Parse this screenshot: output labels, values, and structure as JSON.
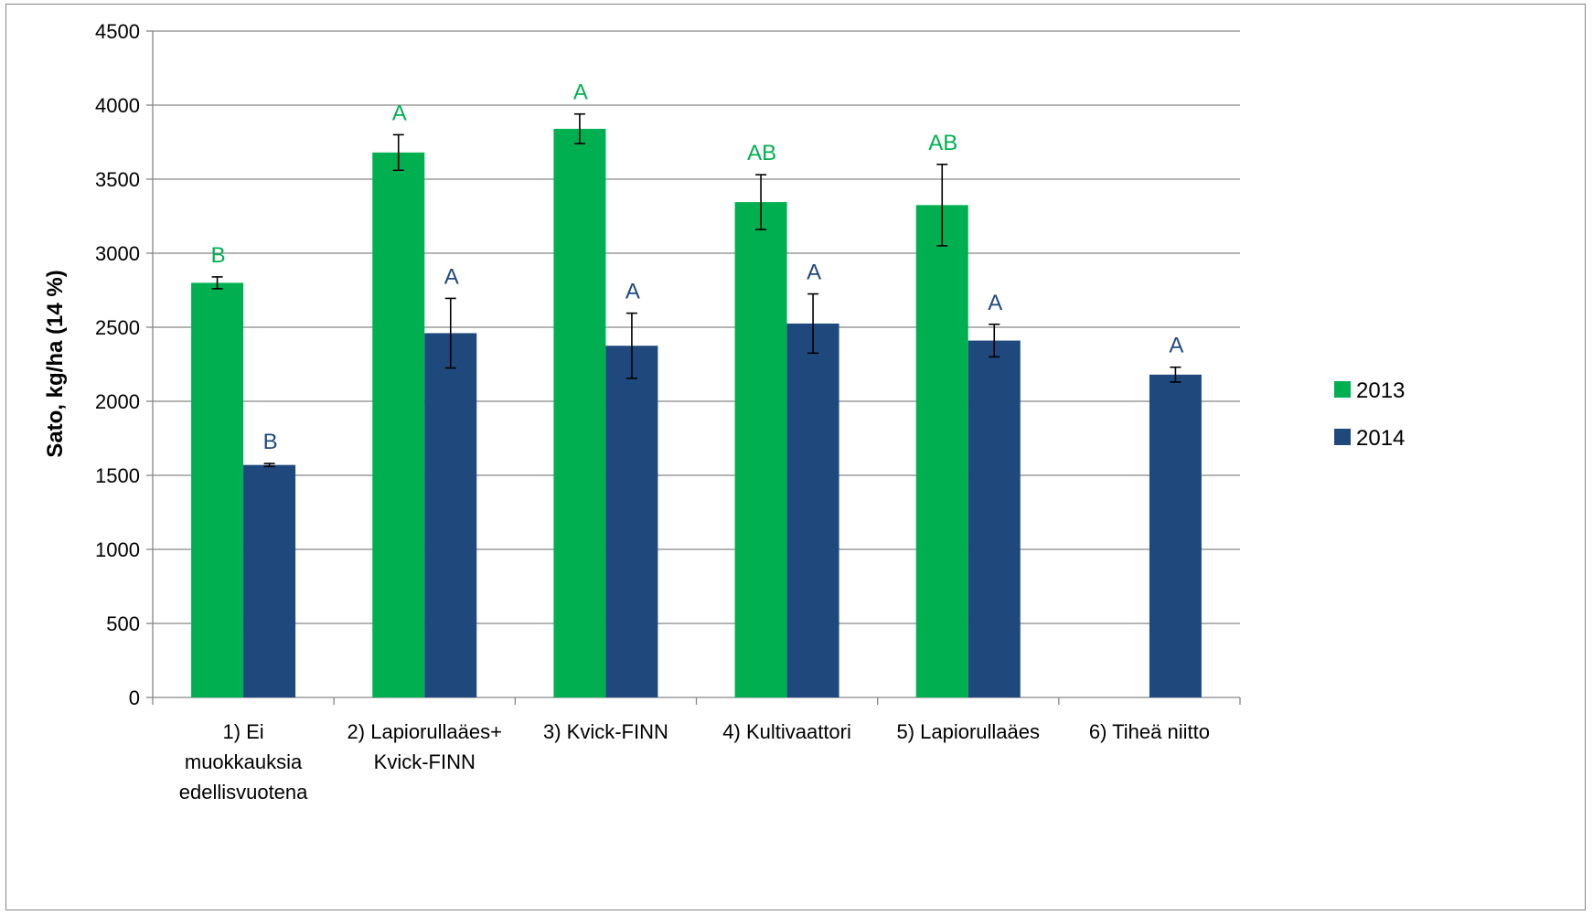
{
  "chart_data": {
    "type": "bar",
    "ylabel": "Sato, kg/ha (14 %)",
    "xlabel": "",
    "ylim": [
      0,
      4500
    ],
    "yticks": [
      0,
      500,
      1000,
      1500,
      2000,
      2500,
      3000,
      3500,
      4000,
      4500
    ],
    "grid": true,
    "legend_position": "right",
    "categories": [
      [
        "1) Ei",
        "muokkauksia",
        "edellisvuotena"
      ],
      [
        "2) Lapiorullaäes+",
        "Kvick-FINN"
      ],
      [
        "3) Kvick-FINN"
      ],
      [
        "4) Kultivaattori"
      ],
      [
        "5) Lapiorullaäes"
      ],
      [
        "6) Tiheä niitto"
      ]
    ],
    "series": [
      {
        "name": "2013",
        "color": "#00b050",
        "values": [
          2800,
          3680,
          3840,
          3345,
          3325,
          null
        ],
        "errors": [
          40,
          120,
          100,
          185,
          275,
          null
        ],
        "letters": [
          "B",
          "A",
          "A",
          "AB",
          "AB",
          null
        ]
      },
      {
        "name": "2014",
        "color": "#1f497d",
        "values": [
          1570,
          2460,
          2375,
          2525,
          2410,
          2180
        ],
        "errors": [
          10,
          235,
          220,
          200,
          110,
          50
        ],
        "letters": [
          "B",
          "A",
          "A",
          "A",
          "A",
          "A"
        ]
      }
    ]
  }
}
